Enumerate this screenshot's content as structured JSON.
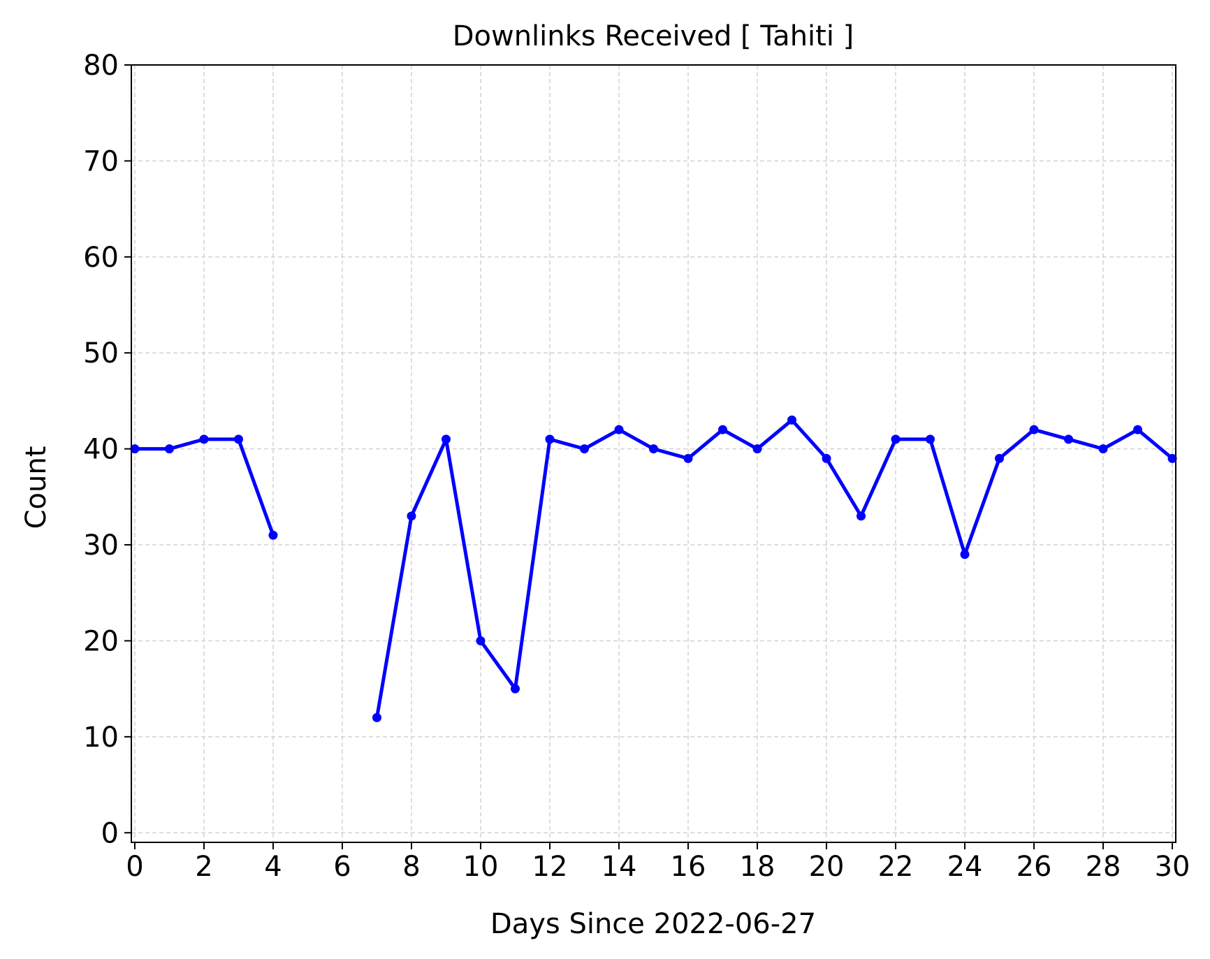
{
  "chart_data": {
    "type": "line",
    "title": "Downlinks Received [ Tahiti ]",
    "xlabel": "Days Since 2022-06-27",
    "ylabel": "Count",
    "xlim": [
      -0.1,
      30.1
    ],
    "ylim": [
      -1,
      80
    ],
    "xticks": [
      0,
      2,
      4,
      6,
      8,
      10,
      12,
      14,
      16,
      18,
      20,
      22,
      24,
      26,
      28,
      30
    ],
    "yticks": [
      0,
      10,
      20,
      30,
      40,
      50,
      60,
      70,
      80
    ],
    "grid": true,
    "series": [
      {
        "color": "#0000ff",
        "x": [
          0,
          1,
          2,
          3,
          4,
          5,
          6,
          7,
          8,
          9,
          10,
          11,
          12,
          13,
          14,
          15,
          16,
          17,
          18,
          19,
          20,
          21,
          22,
          23,
          24,
          25,
          26,
          27,
          28,
          29,
          30
        ],
        "y": [
          40,
          40,
          41,
          41,
          31,
          null,
          null,
          12,
          33,
          41,
          20,
          15,
          41,
          40,
          42,
          40,
          39,
          42,
          40,
          43,
          39,
          33,
          41,
          41,
          29,
          39,
          42,
          41,
          40,
          42,
          39
        ]
      }
    ]
  }
}
